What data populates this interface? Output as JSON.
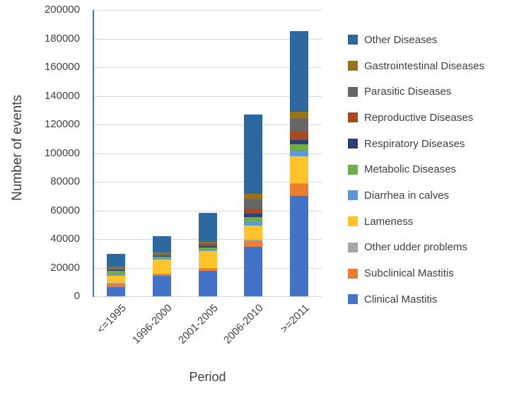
{
  "chart_data": {
    "type": "bar",
    "stacked": true,
    "title": "",
    "xlabel": "Period",
    "ylabel": "Number of events",
    "categories": [
      "<=1995",
      "1996-2000",
      "2001-2005",
      "2006-2010",
      ">=2011"
    ],
    "category_totals": [
      30000,
      42000,
      58500,
      127000,
      185000
    ],
    "ylim": [
      0,
      200000
    ],
    "yticks": [
      0,
      20000,
      40000,
      60000,
      80000,
      100000,
      120000,
      140000,
      160000,
      180000,
      200000
    ],
    "grid": true,
    "legend_position": "right",
    "legend_order_top_to_bottom": [
      "Other Diseases",
      "Gastrointestinal Diseases",
      "Parasitic Diseases",
      "Reproductive Diseases",
      "Respiratory Diseases",
      "Metabolic Diseases",
      "Diarrhea in calves",
      "Lameness",
      "Other udder problems",
      "Subclinical Mastitis",
      "Clinical Mastitis"
    ],
    "series": [
      {
        "name": "Clinical Mastitis",
        "color": "#4472C4",
        "values": [
          6500,
          14500,
          17700,
          34500,
          70000
        ]
      },
      {
        "name": "Subclinical Mastitis",
        "color": "#ED7D31",
        "values": [
          2500,
          800,
          1500,
          4000,
          8500
        ]
      },
      {
        "name": "Other udder problems",
        "color": "#A6A6A6",
        "values": [
          700,
          500,
          600,
          1000,
          800
        ]
      },
      {
        "name": "Lameness",
        "color": "#FFC32B",
        "values": [
          5000,
          10000,
          11800,
          10000,
          18500
        ]
      },
      {
        "name": "Diarrhea in calves",
        "color": "#5B9BD5",
        "values": [
          1400,
          1000,
          1300,
          2500,
          3300
        ]
      },
      {
        "name": "Metabolic Diseases",
        "color": "#70AD47",
        "values": [
          1800,
          1100,
          1500,
          3300,
          4900
        ]
      },
      {
        "name": "Respiratory Diseases",
        "color": "#2A4077",
        "values": [
          700,
          500,
          1000,
          2500,
          3300
        ]
      },
      {
        "name": "Reproductive Diseases",
        "color": "#A6491E",
        "values": [
          500,
          500,
          800,
          3300,
          5800
        ]
      },
      {
        "name": "Parasitic Diseases",
        "color": "#666666",
        "values": [
          500,
          400,
          800,
          6500,
          9000
        ]
      },
      {
        "name": "Gastrointestinal Diseases",
        "color": "#97741A",
        "values": [
          1400,
          1300,
          1200,
          4000,
          4900
        ]
      },
      {
        "name": "Other Diseases",
        "color": "#2D69A0",
        "values": [
          9000,
          11400,
          20300,
          55400,
          56000
        ]
      }
    ]
  },
  "colors": {
    "axis_line": "#4472C4",
    "gridline": "#D9D9D9",
    "text": "#404040",
    "background": "#FFFFFF"
  }
}
